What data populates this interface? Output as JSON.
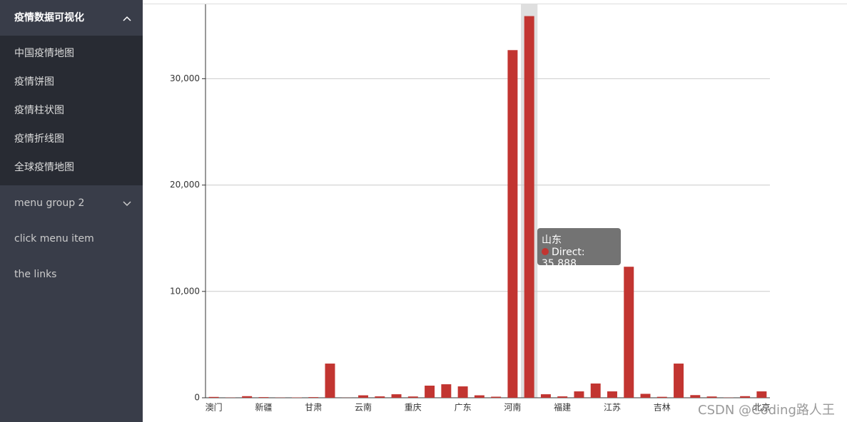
{
  "sidebar": {
    "group_title": "疫情数据可视化",
    "items": [
      "中国疫情地图",
      "疫情饼图",
      "疫情柱状图",
      "疫情折线图",
      "全球疫情地图"
    ],
    "group2_title": "menu group 2",
    "links": [
      "click menu item",
      "the links"
    ]
  },
  "chart_data": {
    "type": "bar",
    "categories": [
      "澳门",
      null,
      null,
      "新疆",
      null,
      null,
      "甘肃",
      null,
      null,
      "云南",
      null,
      null,
      "重庆",
      null,
      null,
      "广东",
      null,
      null,
      "河南",
      null,
      null,
      "福建",
      null,
      null,
      "江苏",
      null,
      null,
      "吉林",
      null,
      null,
      null,
      null,
      null,
      "北京"
    ],
    "series": [
      {
        "name": "Direct",
        "color": "#c23531",
        "values": [
          80,
          20,
          150,
          60,
          20,
          30,
          60,
          3215,
          10,
          230,
          130,
          330,
          120,
          1140,
          1270,
          1070,
          230,
          100,
          32690,
          35888,
          330,
          130,
          600,
          1340,
          600,
          12320,
          370,
          90,
          3215,
          250,
          120,
          20,
          150,
          600
        ]
      }
    ],
    "ylim": [
      0,
      37000
    ],
    "yticks": [
      0,
      {
        "value": 10000,
        "label": "10,000"
      },
      {
        "value": 20000,
        "label": "20,000"
      },
      {
        "value": 30000,
        "label": "30,000"
      }
    ],
    "grid": true,
    "tooltip": {
      "title": "山东",
      "line": "Direct: 35,888"
    }
  },
  "watermark": "CSDN @Coding路人王"
}
